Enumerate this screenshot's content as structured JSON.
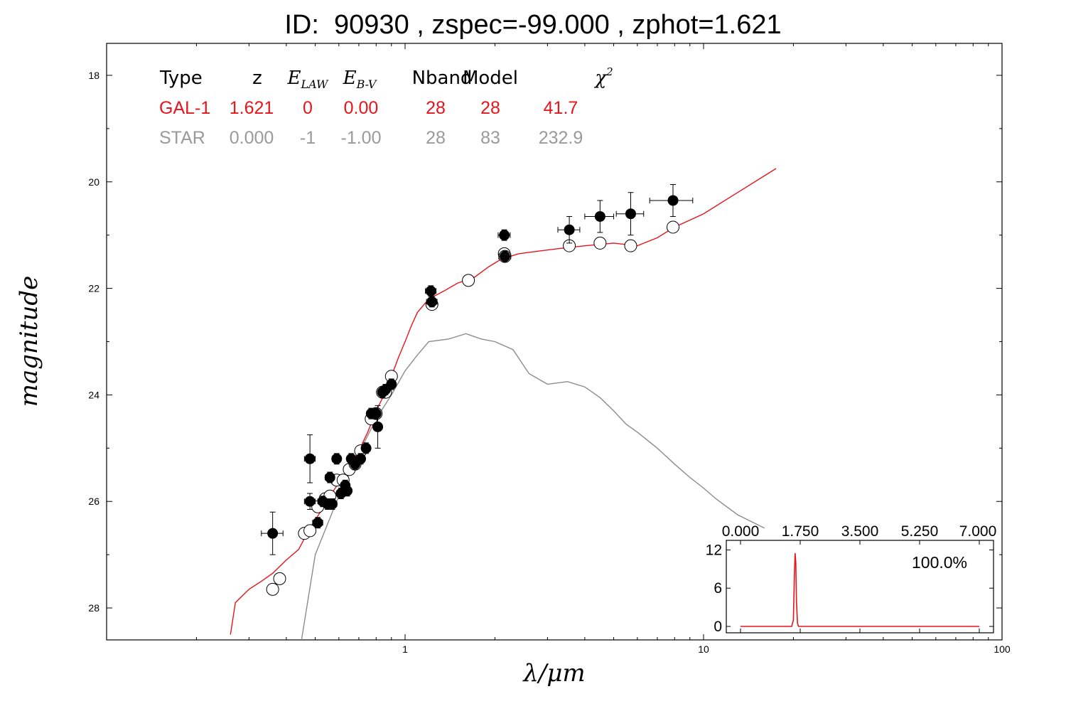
{
  "title": "ID:  90930 , zspec=-99.000 , zphot=1.621",
  "axes": {
    "ylabel": "magnitude",
    "xlabel": "λ/μm",
    "xscale": "log",
    "xlim": [
      0.1,
      100
    ],
    "ylim": [
      28.6,
      17.4
    ],
    "y_inverted": true,
    "xticks": [
      {
        "v": 1,
        "label": "1"
      },
      {
        "v": 10,
        "label": "10"
      },
      {
        "v": 100,
        "label": "100"
      }
    ],
    "yticks": [
      {
        "v": 18,
        "label": "18"
      },
      {
        "v": 20,
        "label": "20"
      },
      {
        "v": 22,
        "label": "22"
      },
      {
        "v": 24,
        "label": "24"
      },
      {
        "v": 26,
        "label": "26"
      },
      {
        "v": 28,
        "label": "28"
      }
    ]
  },
  "colors": {
    "galaxy": "#e8141c",
    "star": "#8c8c8c",
    "points": "#000000",
    "star_text": "#9a9a9a"
  },
  "fit_table": {
    "headers": [
      "Type",
      "z",
      "E_LAW",
      "E_B-V",
      "Nband",
      "Model",
      "χ2"
    ],
    "rows": [
      {
        "style": "galaxy",
        "cells": [
          "GAL-1",
          "1.621",
          "0",
          "0.00",
          "28",
          "28",
          "41.7"
        ]
      },
      {
        "style": "star",
        "cells": [
          "STAR",
          "0.000",
          "-1",
          "-1.00",
          "28",
          "83",
          "232.9"
        ]
      }
    ]
  },
  "chart_data": [
    {
      "type": "scatter",
      "title": "",
      "xlabel": "λ/μm",
      "ylabel": "magnitude",
      "xscale": "log",
      "xlim": [
        0.1,
        100
      ],
      "ylim": [
        28.6,
        17.4
      ],
      "series": [
        {
          "name": "",
          "kind": "observed (filled)",
          "points": [
            [
              0.36,
              26.6,
              0.03,
              0.4
            ],
            [
              0.48,
              25.2,
              0.02,
              0.45
            ],
            [
              0.48,
              26.0,
              0.02,
              0.15
            ],
            [
              0.51,
              26.4,
              0.02,
              0.1
            ],
            [
              0.53,
              26.0,
              0.02,
              0.1
            ],
            [
              0.55,
              26.05,
              0.02,
              0.1
            ],
            [
              0.56,
              25.55,
              0.02,
              0.1
            ],
            [
              0.57,
              26.05,
              0.02,
              0.1
            ],
            [
              0.59,
              25.2,
              0.02,
              0.1
            ],
            [
              0.61,
              25.85,
              0.02,
              0.1
            ],
            [
              0.63,
              25.7,
              0.02,
              0.1
            ],
            [
              0.64,
              25.8,
              0.02,
              0.1
            ],
            [
              0.66,
              25.2,
              0.02,
              0.1
            ],
            [
              0.68,
              25.3,
              0.02,
              0.1
            ],
            [
              0.71,
              25.2,
              0.02,
              0.1
            ],
            [
              0.74,
              25.0,
              0.02,
              0.1
            ],
            [
              0.77,
              24.35,
              0.02,
              0.1
            ],
            [
              0.8,
              24.35,
              0.02,
              0.1
            ],
            [
              0.81,
              24.6,
              0.02,
              0.4
            ],
            [
              0.84,
              23.95,
              0.02,
              0.1
            ],
            [
              0.86,
              23.9,
              0.02,
              0.1
            ],
            [
              0.9,
              23.8,
              0.02,
              0.1
            ],
            [
              1.22,
              22.05,
              0.05,
              0.1
            ],
            [
              1.23,
              22.25,
              0.05,
              0.1
            ],
            [
              2.15,
              21.0,
              0.1,
              0.1
            ],
            [
              2.16,
              21.4,
              0.1,
              0.1
            ],
            [
              3.55,
              20.9,
              0.3,
              0.25
            ],
            [
              4.5,
              20.65,
              0.5,
              0.3
            ],
            [
              5.7,
              20.6,
              0.6,
              0.4
            ],
            [
              7.9,
              20.35,
              1.3,
              0.3
            ]
          ]
        },
        {
          "name": "",
          "kind": "model (open)",
          "points": [
            [
              0.36,
              27.65
            ],
            [
              0.38,
              27.45
            ],
            [
              0.46,
              26.6
            ],
            [
              0.48,
              26.55
            ],
            [
              0.51,
              26.1
            ],
            [
              0.54,
              25.95
            ],
            [
              0.56,
              25.9
            ],
            [
              0.59,
              25.6
            ],
            [
              0.62,
              25.6
            ],
            [
              0.65,
              25.4
            ],
            [
              0.68,
              25.3
            ],
            [
              0.71,
              25.05
            ],
            [
              0.77,
              24.45
            ],
            [
              0.8,
              24.35
            ],
            [
              0.84,
              23.95
            ],
            [
              0.86,
              23.95
            ],
            [
              0.9,
              23.65
            ],
            [
              1.23,
              22.3
            ],
            [
              1.63,
              21.85
            ],
            [
              2.15,
              21.35
            ],
            [
              2.16,
              21.4
            ],
            [
              3.55,
              21.2
            ],
            [
              4.5,
              21.15
            ],
            [
              5.7,
              21.2
            ],
            [
              7.9,
              20.85
            ]
          ]
        }
      ],
      "lines": [
        {
          "name": "",
          "style": "galaxy",
          "points": [
            [
              0.26,
              28.5
            ],
            [
              0.27,
              27.9
            ],
            [
              0.3,
              27.65
            ],
            [
              0.33,
              27.5
            ],
            [
              0.36,
              27.35
            ],
            [
              0.4,
              27.1
            ],
            [
              0.44,
              26.9
            ],
            [
              0.48,
              26.5
            ],
            [
              0.52,
              26.2
            ],
            [
              0.56,
              25.9
            ],
            [
              0.6,
              25.65
            ],
            [
              0.65,
              25.35
            ],
            [
              0.7,
              25.05
            ],
            [
              0.75,
              24.7
            ],
            [
              0.8,
              24.3
            ],
            [
              0.85,
              24.0
            ],
            [
              0.9,
              23.65
            ],
            [
              0.95,
              23.3
            ],
            [
              1.0,
              23.0
            ],
            [
              1.05,
              22.7
            ],
            [
              1.1,
              22.45
            ],
            [
              1.2,
              22.2
            ],
            [
              1.35,
              22.05
            ],
            [
              1.5,
              21.9
            ],
            [
              1.7,
              21.8
            ],
            [
              1.9,
              21.6
            ],
            [
              2.1,
              21.45
            ],
            [
              2.4,
              21.35
            ],
            [
              2.8,
              21.3
            ],
            [
              3.3,
              21.25
            ],
            [
              4.0,
              21.2
            ],
            [
              5.0,
              21.15
            ],
            [
              6.0,
              21.2
            ],
            [
              7.0,
              21.05
            ],
            [
              8.0,
              20.85
            ],
            [
              10.0,
              20.6
            ],
            [
              13.0,
              20.2
            ],
            [
              17.5,
              19.75
            ]
          ]
        },
        {
          "name": "",
          "style": "star",
          "points": [
            [
              0.45,
              28.6
            ],
            [
              0.5,
              27.0
            ],
            [
              0.6,
              25.9
            ],
            [
              0.7,
              25.1
            ],
            [
              0.8,
              24.45
            ],
            [
              0.9,
              24.0
            ],
            [
              1.0,
              23.55
            ],
            [
              1.1,
              23.25
            ],
            [
              1.2,
              23.0
            ],
            [
              1.4,
              22.95
            ],
            [
              1.6,
              22.85
            ],
            [
              1.8,
              22.95
            ],
            [
              2.0,
              23.0
            ],
            [
              2.3,
              23.15
            ],
            [
              2.6,
              23.6
            ],
            [
              3.0,
              23.8
            ],
            [
              3.5,
              23.75
            ],
            [
              4.0,
              23.85
            ],
            [
              4.5,
              24.05
            ],
            [
              5.0,
              24.3
            ],
            [
              5.5,
              24.55
            ],
            [
              6.0,
              24.7
            ],
            [
              7.0,
              25.0
            ],
            [
              8.0,
              25.3
            ],
            [
              9.0,
              25.55
            ],
            [
              10.0,
              25.75
            ],
            [
              11.0,
              25.95
            ],
            [
              13.0,
              26.25
            ],
            [
              16.0,
              26.5
            ]
          ]
        }
      ]
    },
    {
      "type": "line",
      "title": "",
      "inset": true,
      "label": "100.0%",
      "xlim": [
        0,
        7
      ],
      "ylim": [
        -1,
        13.5
      ],
      "xticks": [
        "0.000",
        "1.750",
        "3.500",
        "5.250",
        "7.000"
      ],
      "yticks": [
        "0",
        "6",
        "12"
      ],
      "series": [
        {
          "name": "",
          "x": [
            0.0,
            1.5,
            1.55,
            1.58,
            1.6,
            1.62,
            1.64,
            1.67,
            1.7,
            7.0
          ],
          "y": [
            0,
            0,
            1,
            8,
            11.5,
            10,
            4,
            0.5,
            0,
            0
          ]
        }
      ]
    }
  ]
}
